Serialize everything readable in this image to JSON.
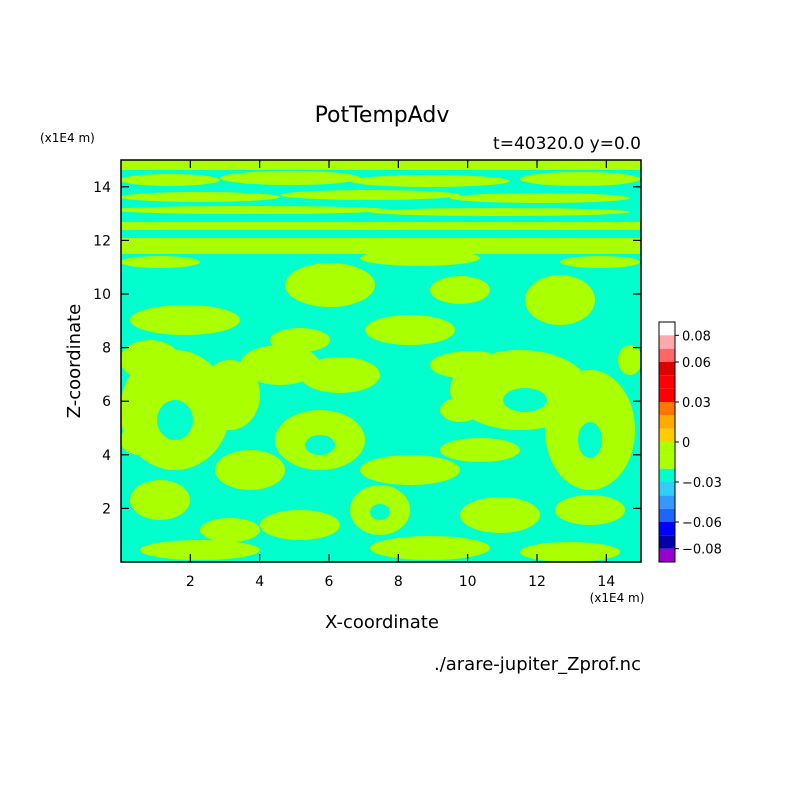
{
  "chart_data": {
    "type": "heatmap",
    "title": "PotTempAdv",
    "subtitle": "t=40320.0 y=0.0",
    "xlabel": "X-coordinate",
    "ylabel": "Z-coordinate",
    "x_unit": "(x1E4 m)",
    "y_unit": "(x1E4 m)",
    "source_file": "./arare-jupiter_Zprof.nc",
    "xlim": [
      0,
      15
    ],
    "ylim": [
      0,
      15
    ],
    "x_ticks": [
      2,
      4,
      6,
      8,
      10,
      12,
      14
    ],
    "y_ticks": [
      2,
      4,
      6,
      8,
      10,
      12,
      14
    ],
    "x_tick_labels": [
      "2",
      "4",
      "6",
      "8",
      "10",
      "12",
      "14"
    ],
    "y_tick_labels": [
      "2",
      "4",
      "6",
      "8",
      "10",
      "12",
      "14"
    ],
    "colorbar": {
      "levels": [
        -0.09,
        -0.08,
        -0.07,
        -0.06,
        -0.05,
        -0.04,
        -0.03,
        -0.02,
        -0.01,
        0,
        0.01,
        0.02,
        0.03,
        0.04,
        0.05,
        0.06,
        0.07,
        0.08,
        0.09
      ],
      "colors": [
        "#9900cc",
        "#0000aa",
        "#0000ff",
        "#1e64ff",
        "#3399ff",
        "#33ccff",
        "#00ffcc",
        "#aaff00",
        "#aaff00",
        "#ffcc00",
        "#ffaa00",
        "#ff7700",
        "#ff0000",
        "#ff0000",
        "#dd0000",
        "#ff6666",
        "#ffaaaa"
      ],
      "tick_values": [
        0.08,
        0.06,
        0.03,
        0,
        -0.03,
        -0.06,
        -0.08
      ],
      "tick_labels": [
        "0.08",
        "0.06",
        "0.03",
        "0",
        "−0.03",
        "−0.06",
        "−0.08"
      ]
    },
    "field_colors": {
      "negative": "#00ffcc",
      "positive": "#aaff00"
    },
    "grid": false,
    "legend": "right colorbar"
  }
}
